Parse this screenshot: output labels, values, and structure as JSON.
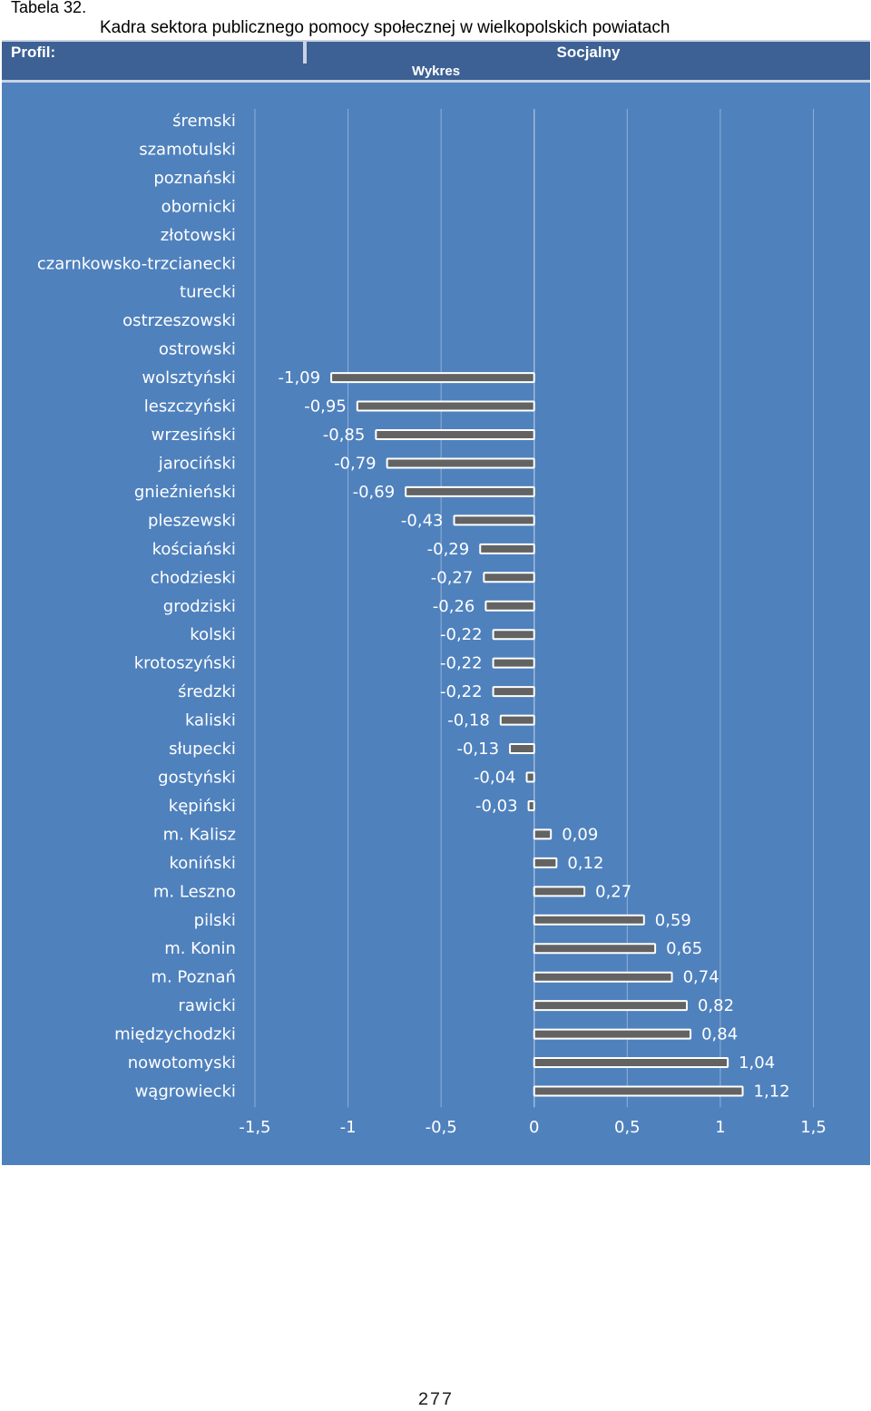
{
  "header": {
    "table_label": "Tabela 32.",
    "title": "Kadra sektora publicznego pomocy społecznej w wielkopolskich powiatach",
    "profile_label": "Profil:",
    "profile_value": "Socjalny",
    "chart_header": "Wykres"
  },
  "page_number": "277",
  "colors": {
    "background": "#4f81bd",
    "bar_fill": "#636363",
    "bar_border": "#ffffff",
    "text": "#ffffff",
    "grid": "#8fb0d6"
  },
  "chart_data": {
    "type": "bar",
    "orientation": "horizontal",
    "title": "",
    "xlabel": "",
    "ylabel": "",
    "xlim": [
      -1.5,
      1.5
    ],
    "grid": true,
    "legend": false,
    "x_ticks": [
      "-1,5",
      "-1",
      "-0,5",
      "0",
      "0,5",
      "1",
      "1,5"
    ],
    "tick_values": [
      -1.5,
      -1,
      -0.5,
      0,
      0.5,
      1,
      1.5
    ],
    "categories": [
      "śremski",
      "szamotulski",
      "poznański",
      "obornicki",
      "złotowski",
      "czarnkowsko-trzcianecki",
      "turecki",
      "ostrzeszowski",
      "ostrowski",
      "wolsztyński",
      "leszczyński",
      "wrzesiński",
      "jarociński",
      "gnieźnieński",
      "pleszewski",
      "kościański",
      "chodzieski",
      "grodziski",
      "kolski",
      "krotoszyński",
      "średzki",
      "kaliski",
      "słupecki",
      "gostyński",
      "kępiński",
      "m. Kalisz",
      "koniński",
      "m. Leszno",
      "pilski",
      "m. Konin",
      "m. Poznań",
      "rawicki",
      "międzychodzki",
      "nowotomyski",
      "wągrowiecki"
    ],
    "values": [
      null,
      null,
      null,
      null,
      null,
      null,
      null,
      null,
      null,
      -1.09,
      -0.95,
      -0.85,
      -0.79,
      -0.69,
      -0.43,
      -0.29,
      -0.27,
      -0.26,
      -0.22,
      -0.22,
      -0.22,
      -0.18,
      -0.13,
      -0.04,
      -0.03,
      0.09,
      0.12,
      0.27,
      0.59,
      0.65,
      0.74,
      0.82,
      0.84,
      1.04,
      1.12
    ],
    "value_labels": [
      "",
      "",
      "",
      "",
      "",
      "",
      "",
      "",
      "",
      "-1,09",
      "-0,95",
      "-0,85",
      "-0,79",
      "-0,69",
      "-0,43",
      "-0,29",
      "-0,27",
      "-0,26",
      "-0,22",
      "-0,22",
      "-0,22",
      "-0,18",
      "-0,13",
      "-0,04",
      "-0,03",
      "0,09",
      "0,12",
      "0,27",
      "0,59",
      "0,65",
      "0,74",
      "0,82",
      "0,84",
      "1,04",
      "1,12"
    ]
  }
}
